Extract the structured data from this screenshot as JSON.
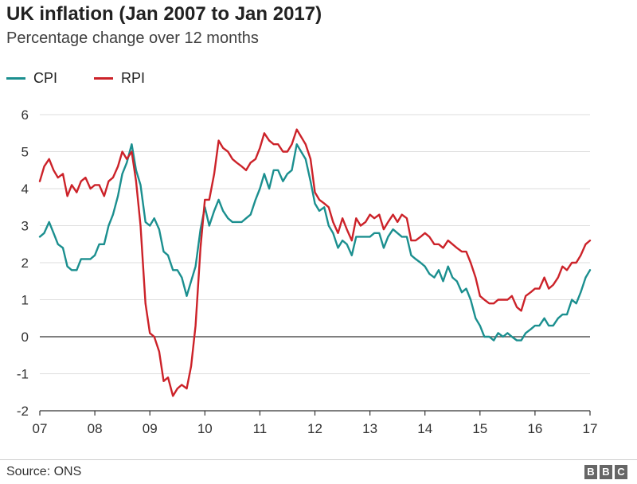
{
  "header": {
    "title": "UK inflation (Jan 2007 to Jan 2017)",
    "subtitle": "Percentage change over 12 months"
  },
  "footer": {
    "source": "Source: ONS",
    "logo_letters": [
      "B",
      "B",
      "C"
    ]
  },
  "colors": {
    "cpi": "#1b8f8f",
    "rpi": "#cc2229",
    "grid": "#dddddd",
    "axis": "#333333"
  },
  "chart_data": {
    "type": "line",
    "title": "UK inflation (Jan 2007 to Jan 2017)",
    "subtitle": "Percentage change over 12 months",
    "xlabel": "",
    "ylabel": "",
    "xlim": [
      2007.0,
      2017.0
    ],
    "ylim": [
      -2,
      6
    ],
    "yticks": [
      -2,
      -1,
      0,
      1,
      2,
      3,
      4,
      5,
      6
    ],
    "xticks": [
      {
        "value": 2007,
        "label": "07"
      },
      {
        "value": 2008,
        "label": "08"
      },
      {
        "value": 2009,
        "label": "09"
      },
      {
        "value": 2010,
        "label": "10"
      },
      {
        "value": 2011,
        "label": "11"
      },
      {
        "value": 2012,
        "label": "12"
      },
      {
        "value": 2013,
        "label": "13"
      },
      {
        "value": 2014,
        "label": "14"
      },
      {
        "value": 2015,
        "label": "15"
      },
      {
        "value": 2016,
        "label": "16"
      },
      {
        "value": 2017,
        "label": "17"
      }
    ],
    "grid": "horizontal",
    "legend_position": "top-left",
    "series": [
      {
        "name": "CPI",
        "color": "#1b8f8f",
        "points": [
          [
            2007.0,
            2.7
          ],
          [
            2007.08,
            2.8
          ],
          [
            2007.17,
            3.1
          ],
          [
            2007.25,
            2.8
          ],
          [
            2007.33,
            2.5
          ],
          [
            2007.42,
            2.4
          ],
          [
            2007.5,
            1.9
          ],
          [
            2007.58,
            1.8
          ],
          [
            2007.67,
            1.8
          ],
          [
            2007.75,
            2.1
          ],
          [
            2007.83,
            2.1
          ],
          [
            2007.92,
            2.1
          ],
          [
            2008.0,
            2.2
          ],
          [
            2008.08,
            2.5
          ],
          [
            2008.17,
            2.5
          ],
          [
            2008.25,
            3.0
          ],
          [
            2008.33,
            3.3
          ],
          [
            2008.42,
            3.8
          ],
          [
            2008.5,
            4.4
          ],
          [
            2008.58,
            4.7
          ],
          [
            2008.67,
            5.2
          ],
          [
            2008.75,
            4.5
          ],
          [
            2008.83,
            4.1
          ],
          [
            2008.92,
            3.1
          ],
          [
            2009.0,
            3.0
          ],
          [
            2009.08,
            3.2
          ],
          [
            2009.17,
            2.9
          ],
          [
            2009.25,
            2.3
          ],
          [
            2009.33,
            2.2
          ],
          [
            2009.42,
            1.8
          ],
          [
            2009.5,
            1.8
          ],
          [
            2009.58,
            1.6
          ],
          [
            2009.67,
            1.1
          ],
          [
            2009.75,
            1.5
          ],
          [
            2009.83,
            1.9
          ],
          [
            2009.92,
            2.9
          ],
          [
            2010.0,
            3.5
          ],
          [
            2010.08,
            3.0
          ],
          [
            2010.17,
            3.4
          ],
          [
            2010.25,
            3.7
          ],
          [
            2010.33,
            3.4
          ],
          [
            2010.42,
            3.2
          ],
          [
            2010.5,
            3.1
          ],
          [
            2010.58,
            3.1
          ],
          [
            2010.67,
            3.1
          ],
          [
            2010.75,
            3.2
          ],
          [
            2010.83,
            3.3
          ],
          [
            2010.92,
            3.7
          ],
          [
            2011.0,
            4.0
          ],
          [
            2011.08,
            4.4
          ],
          [
            2011.17,
            4.0
          ],
          [
            2011.25,
            4.5
          ],
          [
            2011.33,
            4.5
          ],
          [
            2011.42,
            4.2
          ],
          [
            2011.5,
            4.4
          ],
          [
            2011.58,
            4.5
          ],
          [
            2011.67,
            5.2
          ],
          [
            2011.75,
            5.0
          ],
          [
            2011.83,
            4.8
          ],
          [
            2011.92,
            4.2
          ],
          [
            2012.0,
            3.6
          ],
          [
            2012.08,
            3.4
          ],
          [
            2012.17,
            3.5
          ],
          [
            2012.25,
            3.0
          ],
          [
            2012.33,
            2.8
          ],
          [
            2012.42,
            2.4
          ],
          [
            2012.5,
            2.6
          ],
          [
            2012.58,
            2.5
          ],
          [
            2012.67,
            2.2
          ],
          [
            2012.75,
            2.7
          ],
          [
            2012.83,
            2.7
          ],
          [
            2012.92,
            2.7
          ],
          [
            2013.0,
            2.7
          ],
          [
            2013.08,
            2.8
          ],
          [
            2013.17,
            2.8
          ],
          [
            2013.25,
            2.4
          ],
          [
            2013.33,
            2.7
          ],
          [
            2013.42,
            2.9
          ],
          [
            2013.5,
            2.8
          ],
          [
            2013.58,
            2.7
          ],
          [
            2013.67,
            2.7
          ],
          [
            2013.75,
            2.2
          ],
          [
            2013.83,
            2.1
          ],
          [
            2013.92,
            2.0
          ],
          [
            2014.0,
            1.9
          ],
          [
            2014.08,
            1.7
          ],
          [
            2014.17,
            1.6
          ],
          [
            2014.25,
            1.8
          ],
          [
            2014.33,
            1.5
          ],
          [
            2014.42,
            1.9
          ],
          [
            2014.5,
            1.6
          ],
          [
            2014.58,
            1.5
          ],
          [
            2014.67,
            1.2
          ],
          [
            2014.75,
            1.3
          ],
          [
            2014.83,
            1.0
          ],
          [
            2014.92,
            0.5
          ],
          [
            2015.0,
            0.3
          ],
          [
            2015.08,
            0.0
          ],
          [
            2015.17,
            0.0
          ],
          [
            2015.25,
            -0.1
          ],
          [
            2015.33,
            0.1
          ],
          [
            2015.42,
            0.0
          ],
          [
            2015.5,
            0.1
          ],
          [
            2015.58,
            0.0
          ],
          [
            2015.67,
            -0.1
          ],
          [
            2015.75,
            -0.1
          ],
          [
            2015.83,
            0.1
          ],
          [
            2015.92,
            0.2
          ],
          [
            2016.0,
            0.3
          ],
          [
            2016.08,
            0.3
          ],
          [
            2016.17,
            0.5
          ],
          [
            2016.25,
            0.3
          ],
          [
            2016.33,
            0.3
          ],
          [
            2016.42,
            0.5
          ],
          [
            2016.5,
            0.6
          ],
          [
            2016.58,
            0.6
          ],
          [
            2016.67,
            1.0
          ],
          [
            2016.75,
            0.9
          ],
          [
            2016.83,
            1.2
          ],
          [
            2016.92,
            1.6
          ],
          [
            2017.0,
            1.8
          ]
        ]
      },
      {
        "name": "RPI",
        "color": "#cc2229",
        "points": [
          [
            2007.0,
            4.2
          ],
          [
            2007.08,
            4.6
          ],
          [
            2007.17,
            4.8
          ],
          [
            2007.25,
            4.5
          ],
          [
            2007.33,
            4.3
          ],
          [
            2007.42,
            4.4
          ],
          [
            2007.5,
            3.8
          ],
          [
            2007.58,
            4.1
          ],
          [
            2007.67,
            3.9
          ],
          [
            2007.75,
            4.2
          ],
          [
            2007.83,
            4.3
          ],
          [
            2007.92,
            4.0
          ],
          [
            2008.0,
            4.1
          ],
          [
            2008.08,
            4.1
          ],
          [
            2008.17,
            3.8
          ],
          [
            2008.25,
            4.2
          ],
          [
            2008.33,
            4.3
          ],
          [
            2008.42,
            4.6
          ],
          [
            2008.5,
            5.0
          ],
          [
            2008.58,
            4.8
          ],
          [
            2008.67,
            5.0
          ],
          [
            2008.75,
            4.2
          ],
          [
            2008.83,
            3.0
          ],
          [
            2008.92,
            0.9
          ],
          [
            2009.0,
            0.1
          ],
          [
            2009.08,
            0.0
          ],
          [
            2009.17,
            -0.4
          ],
          [
            2009.25,
            -1.2
          ],
          [
            2009.33,
            -1.1
          ],
          [
            2009.42,
            -1.6
          ],
          [
            2009.5,
            -1.4
          ],
          [
            2009.58,
            -1.3
          ],
          [
            2009.67,
            -1.4
          ],
          [
            2009.75,
            -0.8
          ],
          [
            2009.83,
            0.3
          ],
          [
            2009.92,
            2.4
          ],
          [
            2010.0,
            3.7
          ],
          [
            2010.08,
            3.7
          ],
          [
            2010.17,
            4.4
          ],
          [
            2010.25,
            5.3
          ],
          [
            2010.33,
            5.1
          ],
          [
            2010.42,
            5.0
          ],
          [
            2010.5,
            4.8
          ],
          [
            2010.58,
            4.7
          ],
          [
            2010.67,
            4.6
          ],
          [
            2010.75,
            4.5
          ],
          [
            2010.83,
            4.7
          ],
          [
            2010.92,
            4.8
          ],
          [
            2011.0,
            5.1
          ],
          [
            2011.08,
            5.5
          ],
          [
            2011.17,
            5.3
          ],
          [
            2011.25,
            5.2
          ],
          [
            2011.33,
            5.2
          ],
          [
            2011.42,
            5.0
          ],
          [
            2011.5,
            5.0
          ],
          [
            2011.58,
            5.2
          ],
          [
            2011.67,
            5.6
          ],
          [
            2011.75,
            5.4
          ],
          [
            2011.83,
            5.2
          ],
          [
            2011.92,
            4.8
          ],
          [
            2012.0,
            3.9
          ],
          [
            2012.08,
            3.7
          ],
          [
            2012.17,
            3.6
          ],
          [
            2012.25,
            3.5
          ],
          [
            2012.33,
            3.1
          ],
          [
            2012.42,
            2.8
          ],
          [
            2012.5,
            3.2
          ],
          [
            2012.58,
            2.9
          ],
          [
            2012.67,
            2.6
          ],
          [
            2012.75,
            3.2
          ],
          [
            2012.83,
            3.0
          ],
          [
            2012.92,
            3.1
          ],
          [
            2013.0,
            3.3
          ],
          [
            2013.08,
            3.2
          ],
          [
            2013.17,
            3.3
          ],
          [
            2013.25,
            2.9
          ],
          [
            2013.33,
            3.1
          ],
          [
            2013.42,
            3.3
          ],
          [
            2013.5,
            3.1
          ],
          [
            2013.58,
            3.3
          ],
          [
            2013.67,
            3.2
          ],
          [
            2013.75,
            2.6
          ],
          [
            2013.83,
            2.6
          ],
          [
            2013.92,
            2.7
          ],
          [
            2014.0,
            2.8
          ],
          [
            2014.08,
            2.7
          ],
          [
            2014.17,
            2.5
          ],
          [
            2014.25,
            2.5
          ],
          [
            2014.33,
            2.4
          ],
          [
            2014.42,
            2.6
          ],
          [
            2014.5,
            2.5
          ],
          [
            2014.58,
            2.4
          ],
          [
            2014.67,
            2.3
          ],
          [
            2014.75,
            2.3
          ],
          [
            2014.83,
            2.0
          ],
          [
            2014.92,
            1.6
          ],
          [
            2015.0,
            1.1
          ],
          [
            2015.08,
            1.0
          ],
          [
            2015.17,
            0.9
          ],
          [
            2015.25,
            0.9
          ],
          [
            2015.33,
            1.0
          ],
          [
            2015.42,
            1.0
          ],
          [
            2015.5,
            1.0
          ],
          [
            2015.58,
            1.1
          ],
          [
            2015.67,
            0.8
          ],
          [
            2015.75,
            0.7
          ],
          [
            2015.83,
            1.1
          ],
          [
            2015.92,
            1.2
          ],
          [
            2016.0,
            1.3
          ],
          [
            2016.08,
            1.3
          ],
          [
            2016.17,
            1.6
          ],
          [
            2016.25,
            1.3
          ],
          [
            2016.33,
            1.4
          ],
          [
            2016.42,
            1.6
          ],
          [
            2016.5,
            1.9
          ],
          [
            2016.58,
            1.8
          ],
          [
            2016.67,
            2.0
          ],
          [
            2016.75,
            2.0
          ],
          [
            2016.83,
            2.2
          ],
          [
            2016.92,
            2.5
          ],
          [
            2017.0,
            2.6
          ]
        ]
      }
    ]
  }
}
